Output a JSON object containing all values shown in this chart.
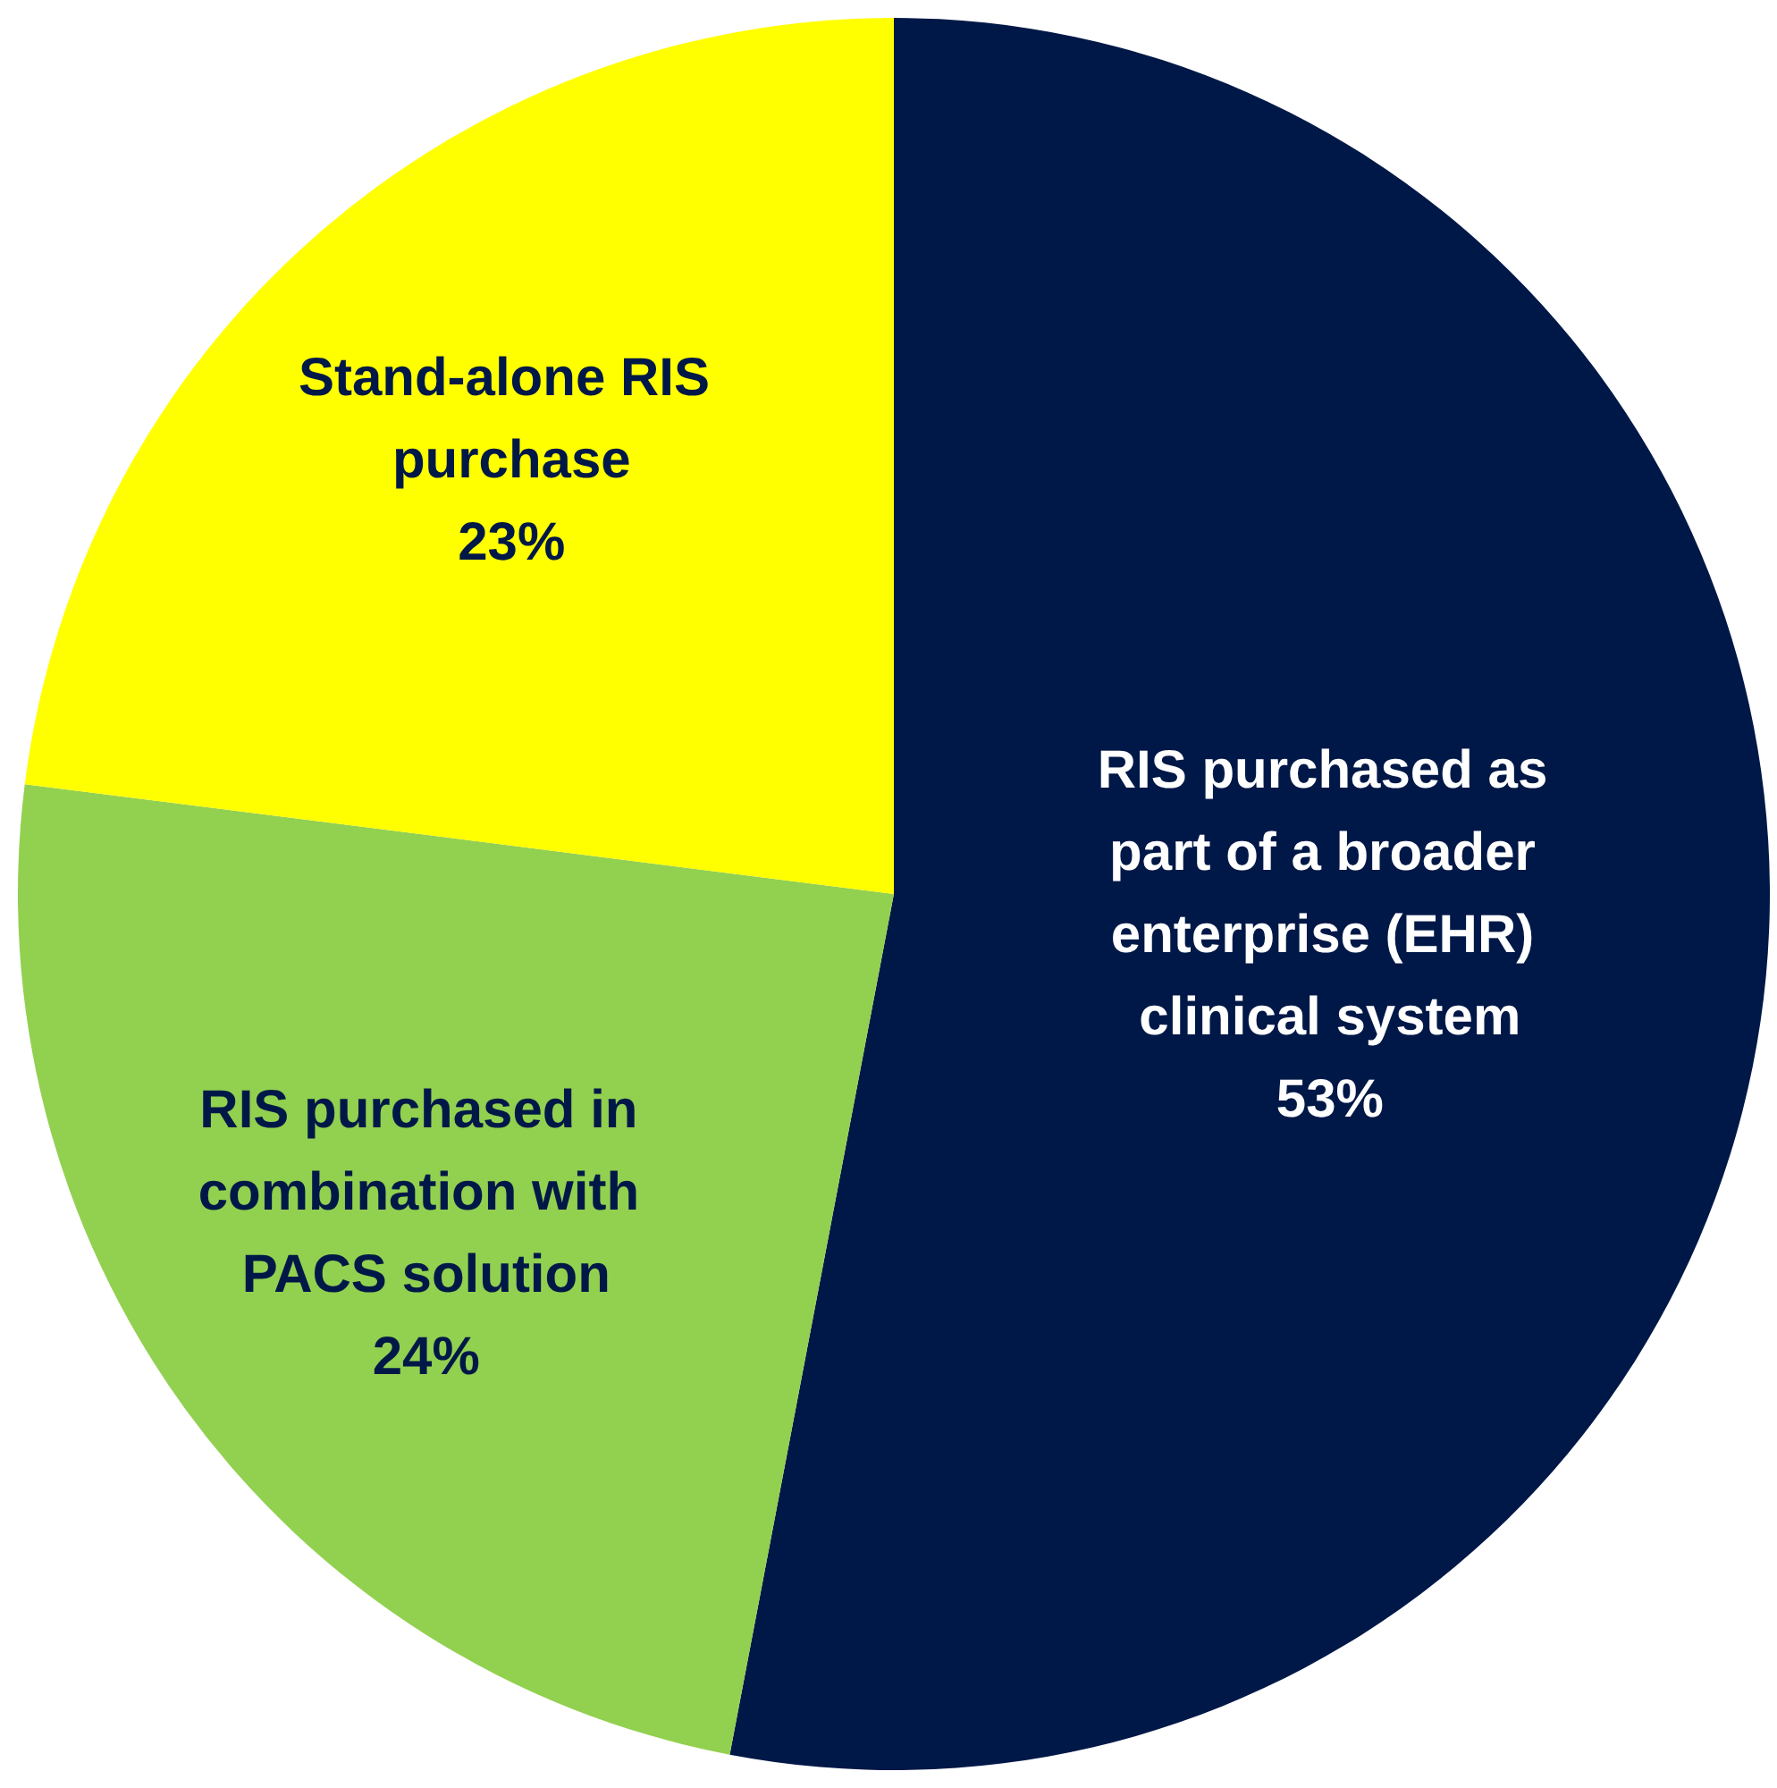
{
  "chart_data": {
    "type": "pie",
    "categories": [
      "RIS purchased as part of a broader enterprise (EHR) clinical system",
      "RIS purchased in combination with PACS solution",
      "Stand-alone RIS purchase"
    ],
    "values": [
      53,
      24,
      23
    ],
    "value_labels": [
      "53%",
      "24%",
      "23%"
    ],
    "colors": [
      "#001847",
      "#92d050",
      "#ffff00"
    ],
    "legend": false
  }
}
